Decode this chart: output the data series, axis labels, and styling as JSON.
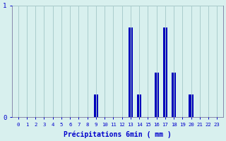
{
  "hours": [
    0,
    1,
    2,
    3,
    4,
    5,
    6,
    7,
    8,
    9,
    10,
    11,
    12,
    13,
    14,
    15,
    16,
    17,
    18,
    19,
    20,
    21,
    22,
    23
  ],
  "values": [
    0,
    0,
    0,
    0,
    0,
    0,
    0,
    0,
    0,
    0.2,
    0,
    0,
    0,
    0.8,
    0.2,
    0,
    0.4,
    0.8,
    0.4,
    0,
    0.2,
    0,
    0,
    0
  ],
  "bar_color": "#0000bb",
  "bg_color": "#d8f0ee",
  "grid_color": "#aacccc",
  "axis_color": "#8888aa",
  "text_color": "#0000cc",
  "xlabel": "Précipitations 6min ( mm )",
  "ylim": [
    0,
    1.0
  ],
  "yticks": [
    0,
    1
  ],
  "ytick_labels": [
    "0",
    "1"
  ]
}
